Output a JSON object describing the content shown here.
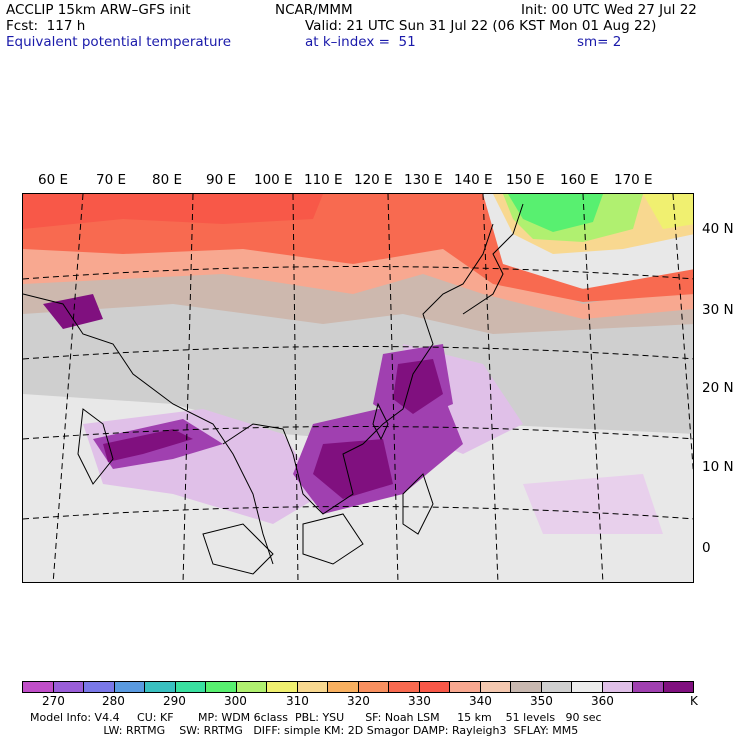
{
  "header": {
    "left_line1": "ACCLIP 15km ARW–GFS init",
    "left_line2": "Fcst:  117 h",
    "left_line3": "Equivalent potential temperature",
    "center_line1": "NCAR/MMM",
    "right_line1": "Init: 00 UTC Wed 27 Jul 22",
    "valid_line": "Valid: 21 UTC Sun 31 Jul 22 (06 KST Mon 01 Aug 22)",
    "level_line": "at k–index =  51",
    "smoothing": "sm= 2"
  },
  "map": {
    "longitude_labels": [
      "60 E",
      "70 E",
      "80 E",
      "90 E",
      "100 E",
      "110 E",
      "120 E",
      "130 E",
      "140 E",
      "150 E",
      "160 E",
      "170 E"
    ],
    "latitude_labels": [
      "40 N",
      "30 N",
      "20 N",
      "10 N",
      "0"
    ]
  },
  "colorbar": {
    "colors": [
      "#c04ec8",
      "#9a5ed8",
      "#7a78e8",
      "#5a9ae0",
      "#3ac0c0",
      "#3ae0a0",
      "#58f070",
      "#b0f070",
      "#f0f070",
      "#f8d890",
      "#f8b060",
      "#f89060",
      "#f86a50",
      "#f85848",
      "#f8a890",
      "#f4c8b0",
      "#c8b8b0",
      "#d0d0d0",
      "#ececec",
      "#e0c0e8",
      "#a040b0",
      "#80107f"
    ],
    "tick_labels": [
      "270",
      "280",
      "290",
      "300",
      "310",
      "320",
      "330",
      "340",
      "350",
      "360"
    ],
    "unit": "K"
  },
  "footer": {
    "line1": "Model Info: V4.4     CU: KF       MP: WDM 6class  PBL: YSU      SF: Noah LSM     15 km    51 levels   90 sec",
    "line2": "                     LW: RRTMG    SW: RRTMG   DIFF: simple KM: 2D Smagor DAMP: Rayleigh3  SFLAY: MM5"
  }
}
